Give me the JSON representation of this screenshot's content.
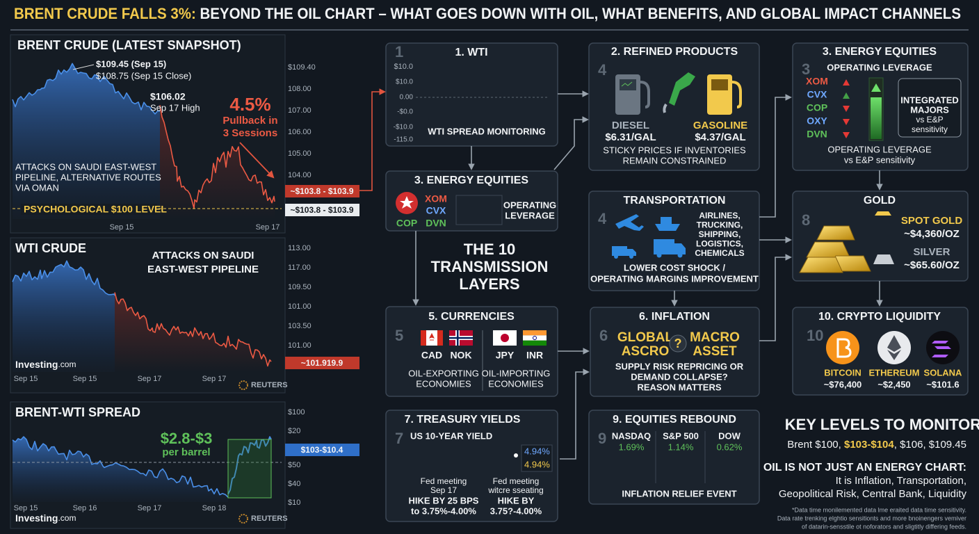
{
  "title": {
    "highlight": "BRENT CRUDE FALLS 3%:",
    "rest": " BEYOND THE OIL CHART – WHAT GOES DOWN WITH OIL, WHAT BENEFITS, AND GLOBAL IMPACT CHANNELS"
  },
  "brent": {
    "title": "BRENT CRUDE (LATEST SNAPSHOT)",
    "ann1": "$109.45 (Sep 15)",
    "ann2": "$108.75 (Sep 15 Close)",
    "ann3a": "$106.02",
    "ann3b": "Sep 17 High",
    "pct": "4.5%",
    "pullback": [
      "Pullback in",
      "3 Sessions"
    ],
    "note": [
      "ATTACKS ON SAUDI EAST-WEST",
      "PIPELINE, ALTERNATIVE ROUTES",
      "VIA OMAN"
    ],
    "level": "PSYCHOLOGICAL $100 LEVEL",
    "ticks": [
      "$109.40",
      "108.00",
      "107.00",
      "106.00",
      "105.00",
      "104.00"
    ],
    "tags": [
      "~$103.8 - $103.9",
      "~$103.8 - $103.9"
    ],
    "x": [
      "Sep 15",
      "Sep 17"
    ]
  },
  "wti": {
    "title": "WTI CRUDE",
    "note": [
      "ATTACKS ON SAUDI",
      "EAST-WEST PIPELINE"
    ],
    "ticks": [
      "113.00",
      "117.00",
      "109.50",
      "101.00",
      "103.50",
      "101.00"
    ],
    "tag": "~101.919.9",
    "x": [
      "Sep 15",
      "Sep 15",
      "Sep 17",
      "Sep 17"
    ],
    "source": [
      "Investing",
      ".com"
    ],
    "reuters": "REUTERS"
  },
  "spread": {
    "title": "BRENT-WTI SPREAD",
    "ann": "$2.8-$3",
    "ann2": "per barrel",
    "ticks": [
      "$100",
      "$20",
      "$50",
      "$40",
      "$10"
    ],
    "tag": "$103-$10.4",
    "x": [
      "Sep 15",
      "Sep 16",
      "Sep 17",
      "Sep 18"
    ],
    "source": [
      "Investing",
      ".com"
    ],
    "reuters": "REUTERS"
  },
  "center": [
    "THE 10",
    "TRANSMISSION",
    "LAYERS"
  ],
  "wti_panel": {
    "num": "1",
    "title": "1. WTI",
    "ticks": [
      "$10.0",
      "$10.0",
      "0.00",
      "-$0.0",
      "-$10.0",
      "-115.0"
    ],
    "label": "WTI SPREAD MONITORING"
  },
  "equities_small": {
    "title": "3. ENERGY EQUITIES",
    "tickers": [
      "XOM",
      "CVX",
      "COP",
      "DVN"
    ],
    "label": [
      "OPERATING",
      "LEVERAGE"
    ]
  },
  "currencies": {
    "num": "5",
    "title": "5. CURRENCIES",
    "codes": [
      "CAD",
      "NOK",
      "JPY",
      "INR"
    ],
    "groups": [
      [
        "OIL-EXPORTING",
        "ECONOMIES"
      ],
      [
        "OIL-IMPORTING",
        "ECONOMIES"
      ]
    ]
  },
  "treasury": {
    "num": "7",
    "title": "7. TREASURY YIELDS",
    "sub": "US 10-YEAR YIELD",
    "values": [
      "4.94%",
      "4.94%"
    ],
    "left": [
      "Fed meeting",
      "Sep 17",
      "HIKE BY 25 BPS",
      "to 3.75%-4.00%"
    ],
    "right": [
      "Fed meeting",
      "witcre ssеating",
      "HIKE BY",
      "3.75?-4.00%"
    ]
  },
  "refined": {
    "num": "4",
    "title": "2. REFINED PRODUCTS",
    "items": [
      {
        "name": "DIESEL",
        "price": "$6.31/GAL"
      },
      {
        "name": "GASOLINE",
        "price": "$4.37/GAL"
      }
    ],
    "note": [
      "STICKY PRICES IF INVENTORIES",
      "REMAIN CONSTRAINED"
    ]
  },
  "transport": {
    "num": "4",
    "title": "TRANSPORTATION",
    "list": [
      "AIRLINES,",
      "TRUCKING,",
      "SHIPPING,",
      "LOGISTICS,",
      "CHEMICALS"
    ],
    "note": [
      "LOWER COST SHOCK /",
      "OPERATING MARGINS IMPROVEMENT"
    ]
  },
  "inflation": {
    "num": "6",
    "title": "6. INFLATION",
    "left": [
      "GLOBAL",
      "ASCRO"
    ],
    "mark": "?",
    "right": [
      "MACRO",
      "ASSET"
    ],
    "note": [
      "SUPPLY RISK REPRICING OR",
      "DEMAND COLLAPSE?",
      "REASON MATTERS"
    ]
  },
  "rebound": {
    "num": "9",
    "title": "9. EQUITIES REBOUND",
    "indices": [
      {
        "name": "NASDAQ",
        "change": "1.69%"
      },
      {
        "name": "S&P 500",
        "change": "1.14%"
      },
      {
        "name": "DOW",
        "change": "0.62%"
      }
    ],
    "note": "INFLATION RELIEF EVENT"
  },
  "equities": {
    "num": "3",
    "title": "3. ENERGY EQUITIES",
    "sub": "OPERATING LEVERAGE",
    "tickers": [
      "XOM",
      "CVX",
      "COP",
      "OXY",
      "DVN"
    ],
    "box": [
      "INTEGRATED",
      "MAJORS",
      "vs E&P",
      "sensitivity"
    ],
    "note": [
      "OPERATING LEVERAGE",
      "vs E&P sensitivity"
    ]
  },
  "gold": {
    "num": "8",
    "title": "GOLD",
    "items": [
      {
        "name": "SPOT GOLD",
        "price": "~$4,360/OZ"
      },
      {
        "name": "SILVER",
        "price": "~$65.60/OZ"
      }
    ]
  },
  "crypto": {
    "num": "10",
    "title": "10. CRYPTO LIQUIDITY",
    "items": [
      {
        "name": "BITCOIN",
        "price": "~$76,400"
      },
      {
        "name": "ETHEREUM",
        "price": "~$2,450"
      },
      {
        "name": "SOLANA",
        "price": "~$101.6"
      }
    ]
  },
  "key": {
    "title": "KEY LEVELS TO MONITOR",
    "levels": [
      "Brent $100, ",
      "$103-$104",
      ", $106, $109.45"
    ],
    "heading": "OIL IS NOT JUST AN ENERGY CHART:",
    "lines": [
      "It is Inflation, Transportation,",
      "Geopolitical Risk, Central Bank, Liquidity"
    ],
    "footnote": [
      "*Data time monilemented data lme eraited data time sensitivity.",
      "Data rate trenking elghtio sensitionts and more bnoinengers vemiver",
      "of datarin-sensstile ot noforators and sligtitly differing feeds."
    ]
  }
}
